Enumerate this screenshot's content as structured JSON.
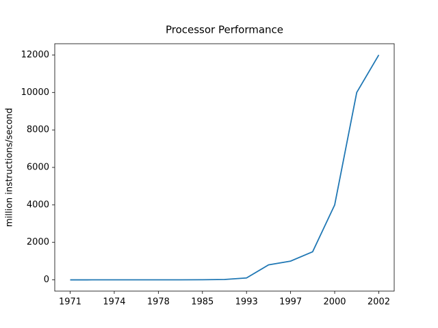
{
  "chart_data": {
    "type": "line",
    "title": "Processor Performance",
    "y_label": "million instructions/second",
    "categories": [
      "1971",
      null,
      "1974",
      null,
      "1978",
      null,
      "1985",
      null,
      "1993",
      null,
      "1997",
      null,
      "2000",
      null,
      "2002"
    ],
    "series": [
      {
        "name": "Processor Performance",
        "color": "#1f77b4",
        "values": [
          0.06,
          0.3,
          0.6,
          0.8,
          1,
          3,
          5,
          20,
          100,
          800,
          1000,
          1500,
          4000,
          10000,
          12000
        ]
      }
    ],
    "ylim": [
      -600,
      12600
    ],
    "yticks": [
      0,
      2000,
      4000,
      6000,
      8000,
      10000,
      12000
    ]
  }
}
